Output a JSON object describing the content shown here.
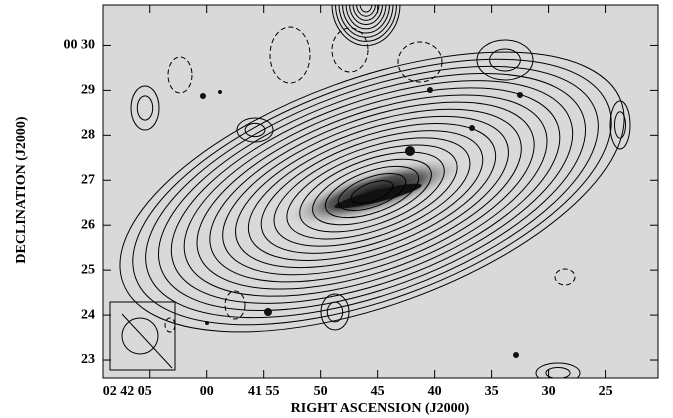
{
  "chart_data": {
    "type": "contour",
    "xlabel": "RIGHT ASCENSION (J2000)",
    "ylabel": "DECLINATION (J2000)",
    "xlim": [
      69.1,
      20.4
    ],
    "ylim": [
      22.6,
      30.9
    ],
    "xticks": [
      {
        "value": 65,
        "label": "02 42 05"
      },
      {
        "value": 60,
        "label": "00"
      },
      {
        "value": 55,
        "label": "41 55"
      },
      50,
      45,
      40,
      35,
      30,
      25
    ],
    "yticks": [
      {
        "value": 30,
        "label": "00 30"
      },
      29,
      28,
      27,
      26,
      25,
      24,
      23
    ]
  }
}
